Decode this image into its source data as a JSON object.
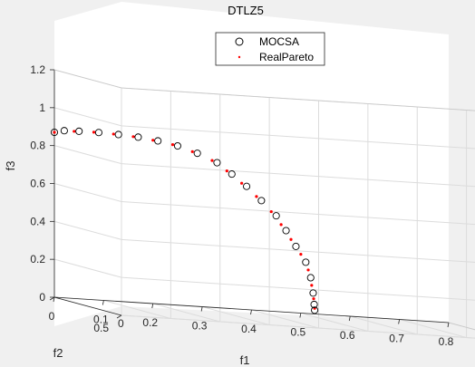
{
  "chart_data": {
    "type": "scatter",
    "title": "DTLZ5",
    "xlabel": "f1",
    "ylabel": "f2",
    "zlabel": "f3",
    "xlim": [
      0,
      0.8
    ],
    "ylim": [
      0,
      0.5
    ],
    "zlim": [
      0,
      1.2
    ],
    "x_ticks": [
      "0",
      "0.1",
      "0.2",
      "0.3",
      "0.4",
      "0.5",
      "0.6",
      "0.7",
      "0.8"
    ],
    "y_ticks": [
      "0",
      "0.5"
    ],
    "z_ticks": [
      "0",
      "0.2",
      "0.4",
      "0.6",
      "0.8",
      "1",
      "1.2"
    ],
    "grid": true,
    "legend_position": "top-right",
    "series": [
      {
        "name": "MOCSA",
        "marker": "open-circle",
        "color": "#000000",
        "points": [
          [
            0.0,
            0.0,
            0.87
          ],
          [
            0.02,
            0.0,
            0.882
          ],
          [
            0.05,
            0.0,
            0.884
          ],
          [
            0.09,
            0.0,
            0.884
          ],
          [
            0.13,
            0.0,
            0.88
          ],
          [
            0.17,
            0.0,
            0.873
          ],
          [
            0.21,
            0.0,
            0.86
          ],
          [
            0.25,
            0.0,
            0.84
          ],
          [
            0.29,
            0.0,
            0.808
          ],
          [
            0.33,
            0.0,
            0.765
          ],
          [
            0.36,
            0.0,
            0.71
          ],
          [
            0.39,
            0.0,
            0.65
          ],
          [
            0.42,
            0.0,
            0.58
          ],
          [
            0.45,
            0.0,
            0.505
          ],
          [
            0.47,
            0.0,
            0.43
          ],
          [
            0.49,
            0.0,
            0.35
          ],
          [
            0.51,
            0.0,
            0.27
          ],
          [
            0.52,
            0.0,
            0.19
          ],
          [
            0.525,
            0.0,
            0.11
          ],
          [
            0.527,
            0.0,
            0.05
          ],
          [
            0.528,
            0.0,
            0.02
          ]
        ]
      },
      {
        "name": "RealPareto",
        "marker": "dot",
        "color": "#ff0000",
        "points": [
          [
            0.0,
            0.0,
            0.87
          ],
          [
            0.04,
            0.0,
            0.882
          ],
          [
            0.08,
            0.0,
            0.884
          ],
          [
            0.12,
            0.0,
            0.881
          ],
          [
            0.16,
            0.0,
            0.874
          ],
          [
            0.2,
            0.0,
            0.862
          ],
          [
            0.24,
            0.0,
            0.845
          ],
          [
            0.28,
            0.0,
            0.815
          ],
          [
            0.32,
            0.0,
            0.775
          ],
          [
            0.35,
            0.0,
            0.725
          ],
          [
            0.38,
            0.0,
            0.665
          ],
          [
            0.41,
            0.0,
            0.6
          ],
          [
            0.44,
            0.0,
            0.525
          ],
          [
            0.46,
            0.0,
            0.46
          ],
          [
            0.48,
            0.0,
            0.385
          ],
          [
            0.5,
            0.0,
            0.31
          ],
          [
            0.515,
            0.0,
            0.23
          ],
          [
            0.522,
            0.0,
            0.15
          ],
          [
            0.526,
            0.0,
            0.08
          ],
          [
            0.528,
            0.0,
            0.03
          ]
        ]
      }
    ]
  }
}
